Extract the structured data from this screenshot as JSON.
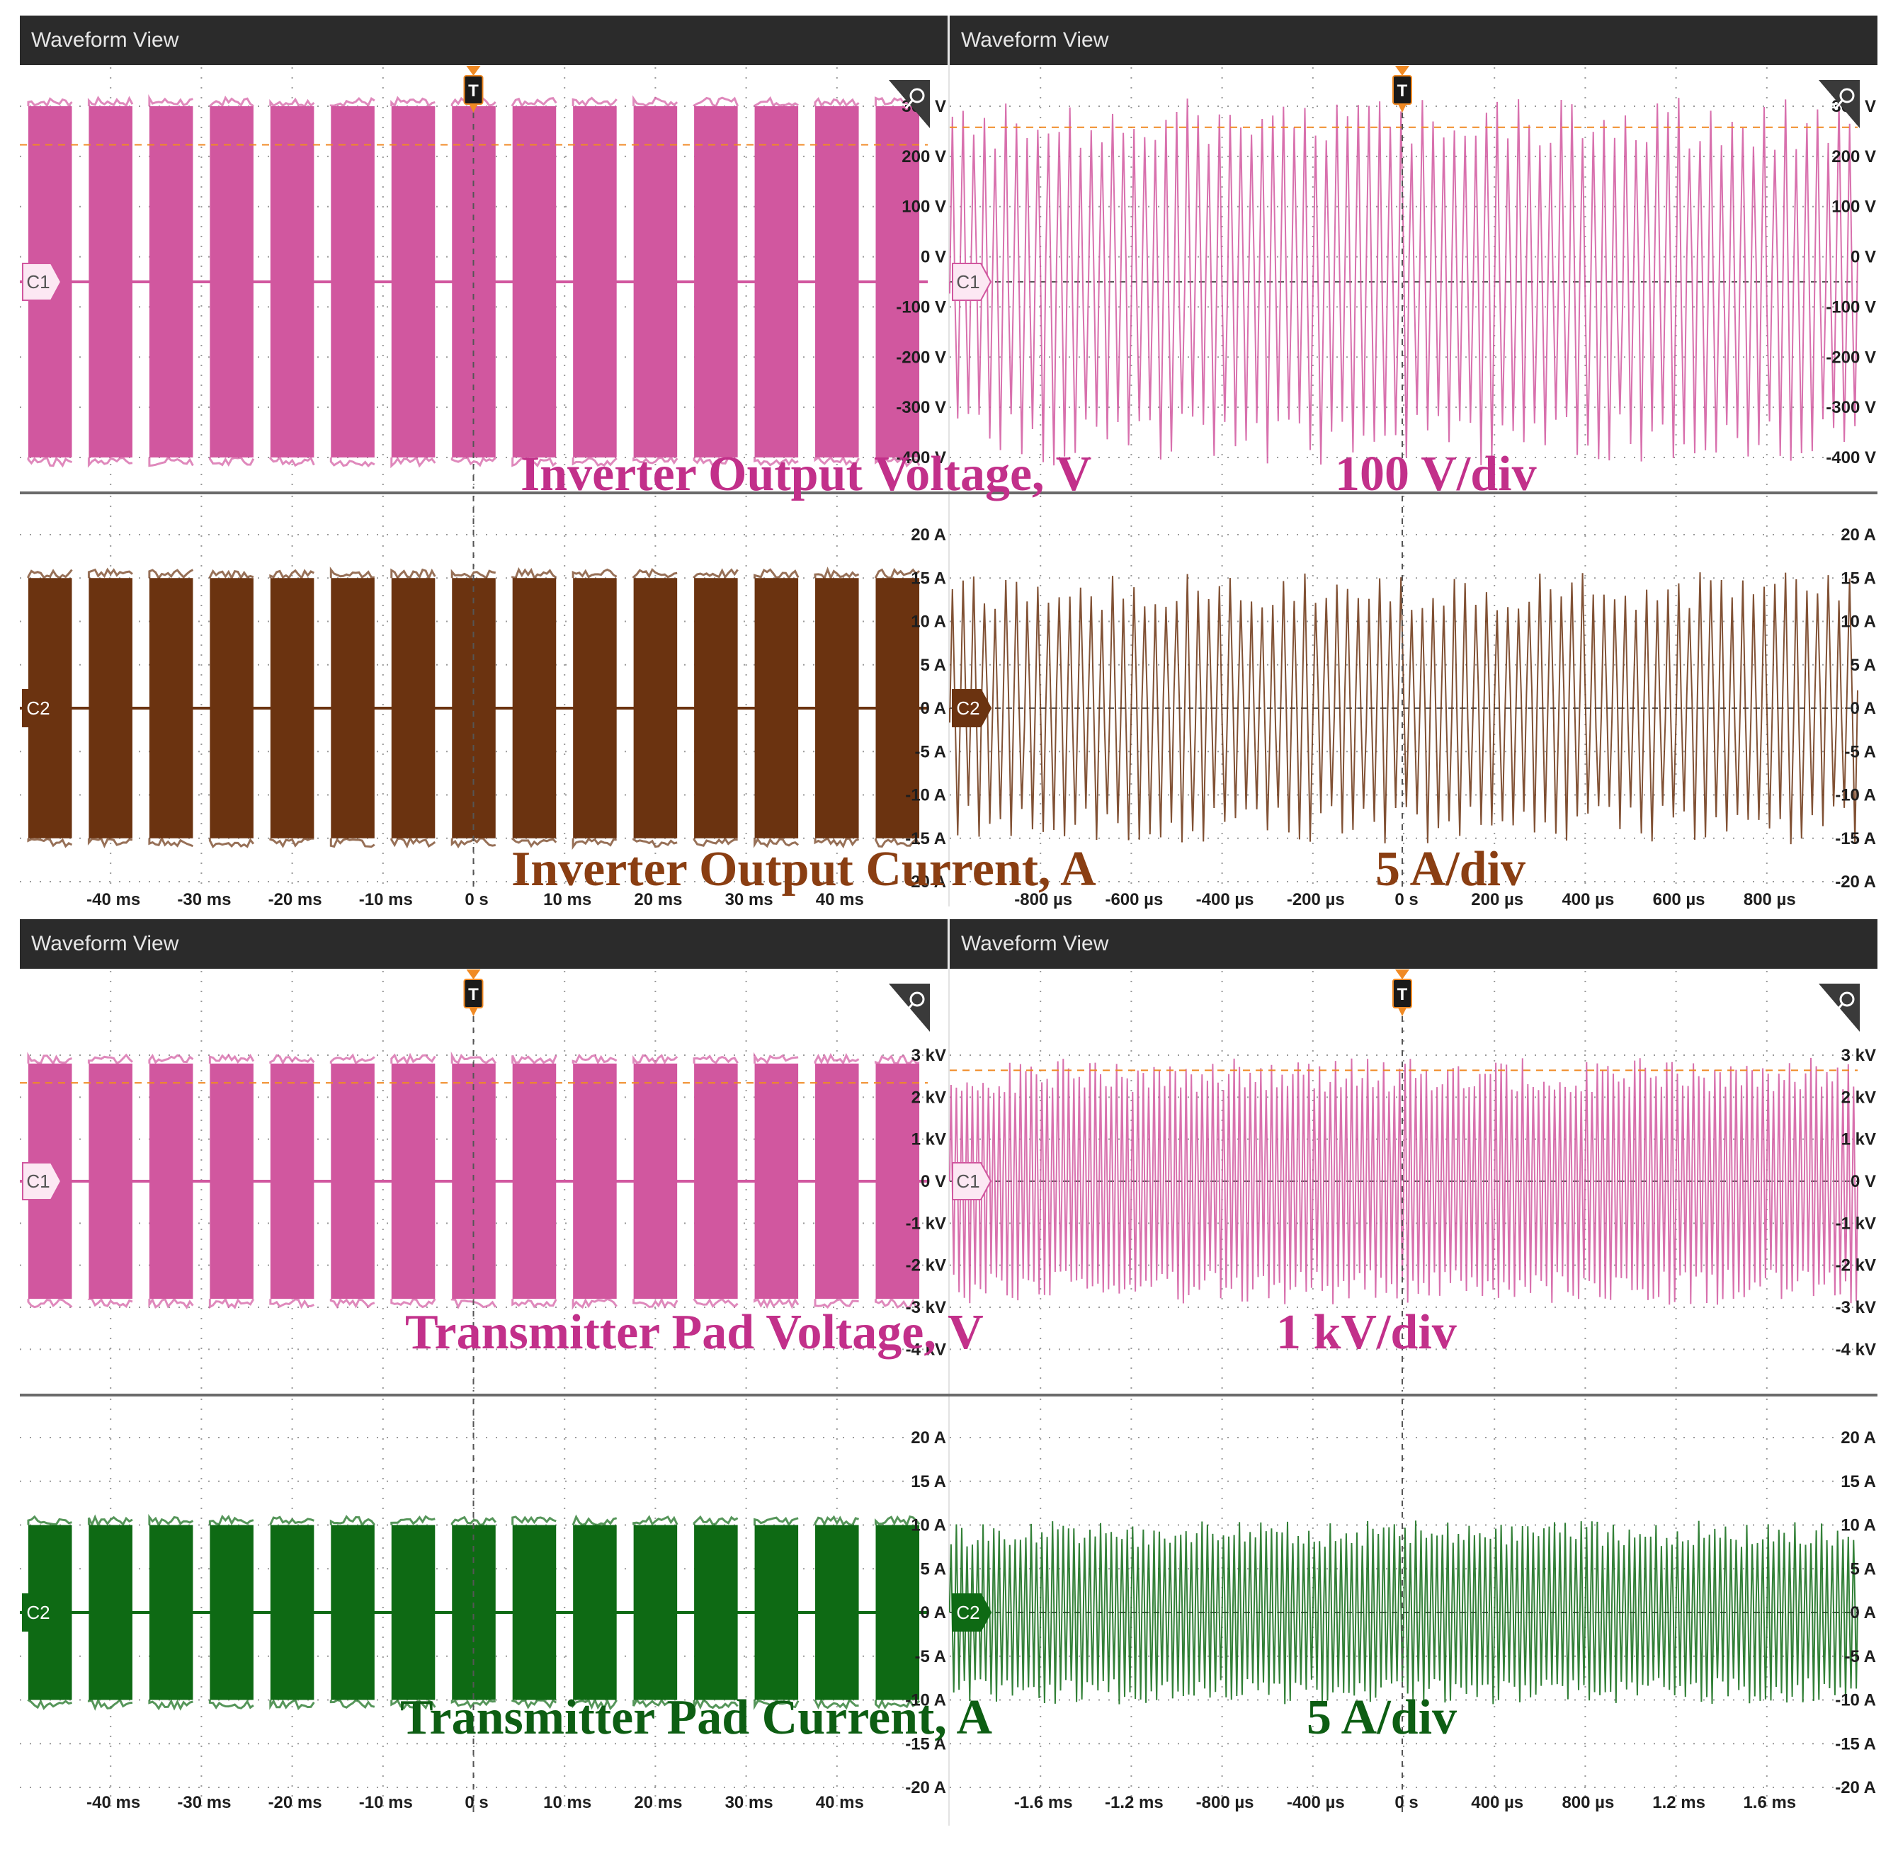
{
  "window_title": "Waveform View",
  "panel_titles": [
    "Waveform View",
    "Waveform View",
    "Waveform View",
    "Waveform View"
  ],
  "colors": {
    "voltage": "#d1579f",
    "inv_current": "#6b3310",
    "pad_current": "#0e6a14",
    "trigger": "#f08a24",
    "grid": "#9a9a9a",
    "titlebar": "#2b2b2b"
  },
  "badges": {
    "c1": "C1",
    "c2": "C2",
    "trigger": "T"
  },
  "chart_data": [
    {
      "type": "line",
      "section": "top",
      "title": "Inverter Output Voltage, V",
      "scale_label": "100 V/div",
      "channel": "C1",
      "y_unit": "V",
      "ylim": [
        -400,
        400
      ],
      "y_ticks": [
        "300 V",
        "200 V",
        "100 V",
        "0 V",
        "-100 V",
        "-200 V",
        "-300 V",
        "-400 V"
      ],
      "burst_amplitude": 400,
      "left_view": {
        "x_ticks": [
          "-40 ms",
          "-30 ms",
          "-20 ms",
          "-10 ms",
          "0 s",
          "10 ms",
          "20 ms",
          "30 ms",
          "40 ms"
        ],
        "bursts": 15,
        "duty": 0.72
      },
      "right_view": {
        "x_ticks": [
          "-800 µs",
          "-600 µs",
          "-400 µs",
          "-200 µs",
          "0 s",
          "200 µs",
          "400 µs",
          "600 µs",
          "800 µs"
        ],
        "cycles": 85
      }
    },
    {
      "type": "line",
      "section": "top",
      "title": "Inverter Output Current, A",
      "scale_label": "5 A/div",
      "channel": "C2",
      "y_unit": "A",
      "ylim": [
        -20,
        20
      ],
      "y_ticks": [
        "20 A",
        "15 A",
        "10 A",
        "5 A",
        "0 A",
        "-5 A",
        "-10 A",
        "-15 A",
        "-20 A"
      ],
      "burst_amplitude": 15,
      "left_view": {
        "x_ticks": [
          "-40 ms",
          "-30 ms",
          "-20 ms",
          "-10 ms",
          "0 s",
          "10 ms",
          "20 ms",
          "30 ms",
          "40 ms"
        ],
        "bursts": 15,
        "duty": 0.72
      },
      "right_view": {
        "x_ticks": [
          "-800 µs",
          "-600 µs",
          "-400 µs",
          "-200 µs",
          "0 s",
          "200 µs",
          "400 µs",
          "600 µs",
          "800 µs"
        ],
        "cycles": 85
      }
    },
    {
      "type": "line",
      "section": "bottom",
      "title": "Transmitter Pad Voltage, V",
      "scale_label": "1 kV/div",
      "channel": "C1",
      "y_unit": "kV",
      "ylim": [
        -4,
        3
      ],
      "y_ticks": [
        "3 kV",
        "2 kV",
        "1 kV",
        "0 V",
        "-1 kV",
        "-2 kV",
        "-3 kV",
        "-4 kV"
      ],
      "burst_amplitude": 2.8,
      "left_view": {
        "x_ticks": [
          "-40 ms",
          "-30 ms",
          "-20 ms",
          "-10 ms",
          "0 s",
          "10 ms",
          "20 ms",
          "30 ms",
          "40 ms"
        ],
        "bursts": 15,
        "duty": 0.72
      },
      "right_view": {
        "x_ticks": [
          "-1.6 ms",
          "-1.2 ms",
          "-800 µs",
          "-400 µs",
          "0 s",
          "400 µs",
          "800 µs",
          "1.2 ms",
          "1.6 ms"
        ],
        "cycles": 170
      }
    },
    {
      "type": "line",
      "section": "bottom",
      "title": "Transmitter Pad Current, A",
      "scale_label": "5 A/div",
      "channel": "C2",
      "y_unit": "A",
      "ylim": [
        -20,
        20
      ],
      "y_ticks": [
        "20 A",
        "15 A",
        "10 A",
        "5 A",
        "0 A",
        "-5 A",
        "-10 A",
        "-15 A",
        "-20 A"
      ],
      "burst_amplitude": 10,
      "left_view": {
        "x_ticks": [
          "-40 ms",
          "-30 ms",
          "-20 ms",
          "-10 ms",
          "0 s",
          "10 ms",
          "20 ms",
          "30 ms",
          "40 ms"
        ],
        "bursts": 15,
        "duty": 0.72
      },
      "right_view": {
        "x_ticks": [
          "-1.6 ms",
          "-1.2 ms",
          "-800 µs",
          "-400 µs",
          "0 s",
          "400 µs",
          "800 µs",
          "1.2 ms",
          "1.6 ms"
        ],
        "cycles": 170
      }
    }
  ]
}
